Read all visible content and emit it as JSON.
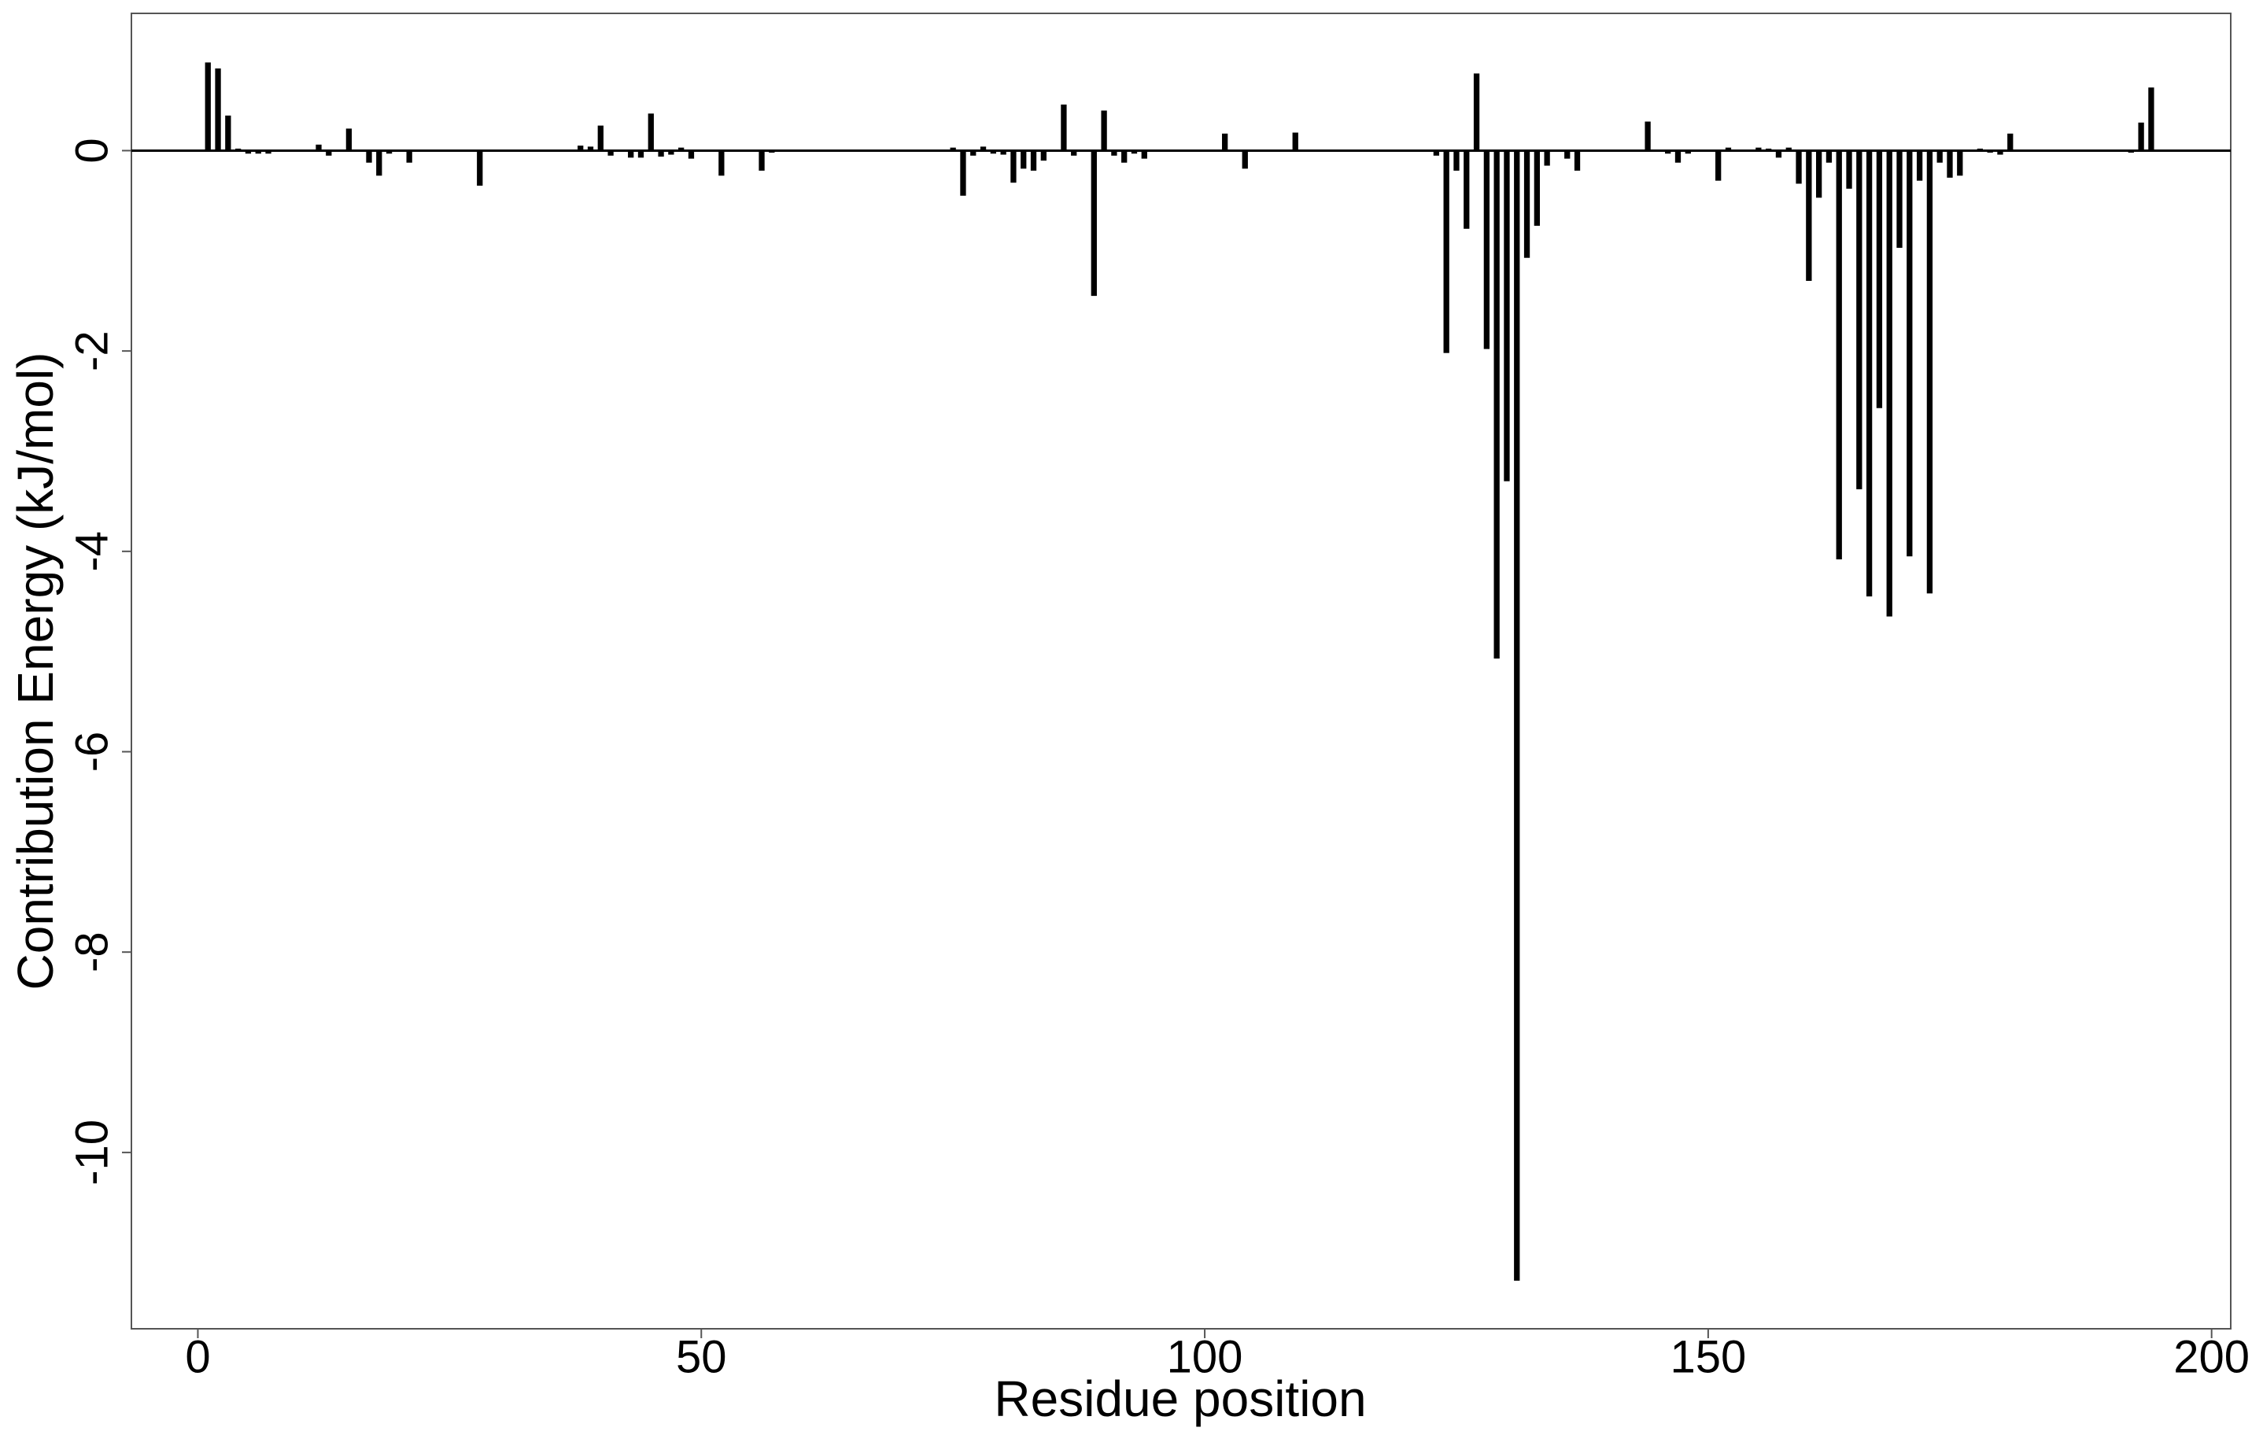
{
  "chart_data": {
    "type": "bar",
    "xlabel": "Residue position",
    "ylabel": "Contribution Energy (kJ/mol)",
    "x": [
      1,
      2,
      3,
      4,
      5,
      6,
      7,
      8,
      9,
      10,
      11,
      12,
      13,
      14,
      15,
      16,
      17,
      18,
      19,
      20,
      21,
      22,
      23,
      24,
      25,
      26,
      27,
      28,
      29,
      30,
      31,
      32,
      33,
      34,
      35,
      36,
      37,
      38,
      39,
      40,
      41,
      42,
      43,
      44,
      45,
      46,
      47,
      48,
      49,
      50,
      51,
      52,
      53,
      54,
      55,
      56,
      57,
      58,
      59,
      60,
      61,
      62,
      63,
      64,
      65,
      66,
      67,
      68,
      69,
      70,
      71,
      72,
      73,
      74,
      75,
      76,
      77,
      78,
      79,
      80,
      81,
      82,
      83,
      84,
      85,
      86,
      87,
      88,
      89,
      90,
      91,
      92,
      93,
      94,
      95,
      96,
      97,
      98,
      99,
      100,
      101,
      102,
      103,
      104,
      105,
      106,
      107,
      108,
      109,
      110,
      111,
      112,
      113,
      114,
      115,
      116,
      117,
      118,
      119,
      120,
      121,
      122,
      123,
      124,
      125,
      126,
      127,
      128,
      129,
      130,
      131,
      132,
      133,
      134,
      135,
      136,
      137,
      138,
      139,
      140,
      141,
      142,
      143,
      144,
      145,
      146,
      147,
      148,
      149,
      150,
      151,
      152,
      153,
      154,
      155,
      156,
      157,
      158,
      159,
      160,
      161,
      162,
      163,
      164,
      165,
      166,
      167,
      168,
      169,
      170,
      171,
      172,
      173,
      174,
      175,
      176,
      177,
      178,
      179,
      180,
      181,
      182,
      183,
      184,
      185,
      186,
      187,
      188,
      189,
      190,
      191,
      192,
      193,
      194
    ],
    "values": [
      0.88,
      0.82,
      0.35,
      0.02,
      -0.03,
      -0.03,
      -0.03,
      0,
      -0.01,
      0,
      0,
      0.06,
      -0.05,
      0,
      0.22,
      0,
      -0.12,
      -0.25,
      -0.03,
      0,
      -0.12,
      0,
      0,
      0,
      0.01,
      0,
      0,
      -0.35,
      0.01,
      0,
      0,
      0,
      0,
      0,
      0.01,
      -0.01,
      0.01,
      0.05,
      0.04,
      0.25,
      -0.05,
      0,
      -0.07,
      -0.07,
      0.37,
      -0.06,
      -0.04,
      0.03,
      -0.08,
      0,
      0,
      -0.25,
      0.01,
      0,
      0,
      -0.2,
      -0.02,
      0,
      0,
      0,
      0,
      0,
      0,
      0,
      0.01,
      0,
      0,
      0,
      0,
      0,
      0,
      0,
      0,
      0,
      0.03,
      -0.45,
      -0.05,
      0.04,
      -0.03,
      -0.04,
      -0.32,
      -0.18,
      -0.2,
      -0.1,
      0,
      0.46,
      -0.05,
      0,
      -1.45,
      0.4,
      -0.05,
      -0.12,
      -0.03,
      -0.08,
      0,
      0,
      0,
      0,
      0,
      0,
      0,
      0.17,
      0,
      -0.18,
      0,
      0,
      0,
      0,
      0.18,
      0,
      0,
      0,
      0,
      0,
      0,
      0,
      0,
      0,
      0,
      0.01,
      0,
      0,
      -0.05,
      -2.02,
      -0.2,
      -0.78,
      0.77,
      -1.98,
      -5.07,
      -3.3,
      -11.28,
      -1.07,
      -0.75,
      -0.15,
      0,
      -0.08,
      -0.2,
      0,
      0,
      0,
      0,
      0,
      0,
      0.29,
      0,
      -0.03,
      -0.12,
      -0.03,
      0,
      0,
      -0.3,
      0.03,
      0,
      0,
      0.03,
      0.02,
      -0.07,
      0.03,
      -0.33,
      -1.3,
      -0.47,
      -0.12,
      -4.08,
      -0.38,
      -3.38,
      -4.45,
      -2.57,
      -4.65,
      -0.97,
      -4.05,
      -0.3,
      -4.42,
      -0.12,
      -0.27,
      -0.25,
      0,
      0.02,
      -0.02,
      -0.04,
      0.17,
      0,
      0,
      0,
      0,
      0,
      0,
      0,
      0,
      0,
      0,
      0,
      -0.02,
      0.28,
      0.63
    ],
    "color": "#000000",
    "xlim": [
      -6.6,
      201.9
    ],
    "xticks": [
      0,
      50,
      100,
      150,
      200
    ],
    "ylim": [
      -11.76,
      1.37
    ],
    "yticks": [
      0,
      -2,
      -4,
      -6,
      -8,
      -10
    ],
    "grid": false
  }
}
